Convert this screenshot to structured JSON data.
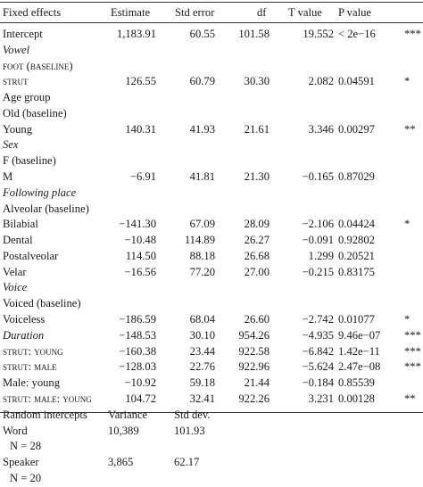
{
  "header": [
    "Fixed effects",
    "Estimate",
    "Std error",
    "df",
    "T value",
    "P value"
  ],
  "rows": [
    {
      "label": "Intercept",
      "est": "1,183.91",
      "se": "60.55",
      "df": "101.58",
      "t": "19.552",
      "p": "< 2e−16",
      "sig": "***"
    },
    {
      "label": "Vowel",
      "italic": true
    },
    {
      "label": "foot (baseline)",
      "sc": true
    },
    {
      "label": "strut",
      "sc": true,
      "est": "126.55",
      "se": "60.79",
      "df": "30.30",
      "t": "2.082",
      "p": "0.04591",
      "sig": "*"
    },
    {
      "label": "Age group"
    },
    {
      "label": "Old (baseline)"
    },
    {
      "label": "Young",
      "est": "140.31",
      "se": "41.93",
      "df": "21.61",
      "t": "3.346",
      "p": "0.00297",
      "sig": "**"
    },
    {
      "label": "Sex",
      "italic": true
    },
    {
      "label": "F (baseline)"
    },
    {
      "label": "M",
      "est": "−6.91",
      "se": "41.81",
      "df": "21.30",
      "t": "−0.165",
      "p": "0.87029",
      "sig": ""
    },
    {
      "label": "Following place",
      "italic": true
    },
    {
      "label": "Alveolar (baseline)"
    },
    {
      "label": "Bilabial",
      "est": "−141.30",
      "se": "67.09",
      "df": "28.09",
      "t": "−2.106",
      "p": "0.04424",
      "sig": "*"
    },
    {
      "label": "Dental",
      "est": "−10.48",
      "se": "114.89",
      "df": "26.27",
      "t": "−0.091",
      "p": "0.92802",
      "sig": ""
    },
    {
      "label": "Postalveolar",
      "est": "114.50",
      "se": "88.18",
      "df": "26.68",
      "t": "1.299",
      "p": "0.20521",
      "sig": ""
    },
    {
      "label": "Velar",
      "est": "−16.56",
      "se": "77.20",
      "df": "27.00",
      "t": "−0.215",
      "p": "0.83175",
      "sig": ""
    },
    {
      "label": "Voice",
      "italic": true
    },
    {
      "label": "Voiced (baseline)"
    },
    {
      "label": "Voiceless",
      "est": "−186.59",
      "se": "68.04",
      "df": "26.60",
      "t": "−2.742",
      "p": "0.01077",
      "sig": "*"
    },
    {
      "label": "Duration",
      "italic": true,
      "est": "−148.53",
      "se": "30.10",
      "df": "954.26",
      "t": "−4.935",
      "p": "9.46e−07",
      "sig": "***"
    },
    {
      "label": "strut: young",
      "sc": true,
      "est": "−160.38",
      "se": "23.44",
      "df": "922.58",
      "t": "−6.842",
      "p": "1.42e−11",
      "sig": "***"
    },
    {
      "label": "strut: male",
      "sc": true,
      "est": "−128.03",
      "se": "22.76",
      "df": "922.96",
      "t": "−5.624",
      "p": "2.47e−08",
      "sig": "***"
    },
    {
      "label": "Male: young",
      "est": "−10.92",
      "se": "59.18",
      "df": "21.44",
      "t": "−0.184",
      "p": "0.85539",
      "sig": ""
    },
    {
      "label": "strut: male: young",
      "sc": true,
      "est": "104.72",
      "se": "32.41",
      "df": "922.26",
      "t": "3.231",
      "p": "0.00128",
      "sig": "**"
    }
  ],
  "random": {
    "header": {
      "label": "Random intercepts",
      "var": "Variance",
      "sd": "Std dev."
    },
    "rows": [
      {
        "label": "Word",
        "var": "10,389",
        "sd": "101.93"
      },
      {
        "label": "N = 28",
        "indent": true
      },
      {
        "label": "Speaker",
        "var": "3,865",
        "sd": "62.17"
      },
      {
        "label": "N = 20",
        "indent": true
      }
    ]
  }
}
